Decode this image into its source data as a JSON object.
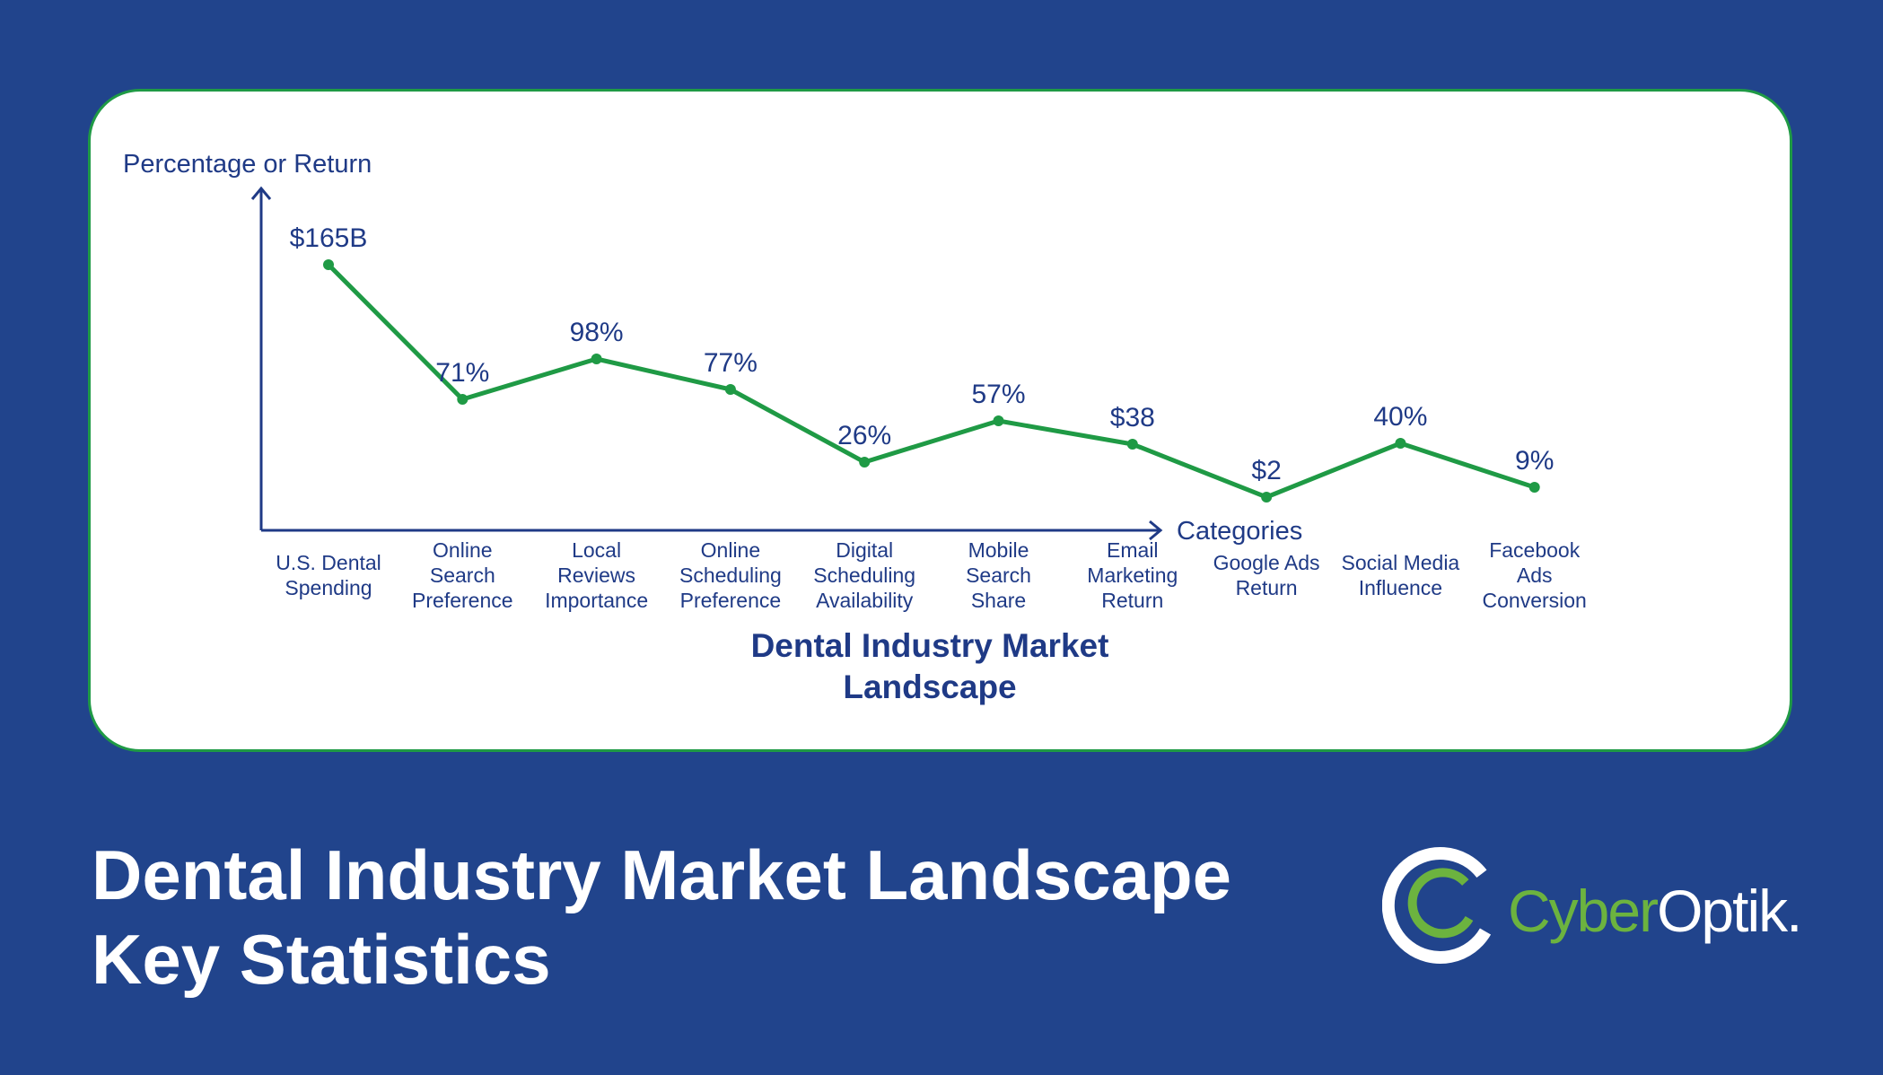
{
  "chart_data": {
    "type": "line",
    "title": "Dental Industry Market Landscape",
    "xlabel": "Categories",
    "ylabel": "Percentage or Return",
    "categories": [
      "U.S. Dental Spending",
      "Online Search Preference",
      "Local Reviews Importance",
      "Online Scheduling Preference",
      "Digital Scheduling Availability",
      "Mobile Search Share",
      "Email Marketing Return",
      "Google Ads Return",
      "Social Media Influence",
      "Facebook Ads Conversion"
    ],
    "category_lines": [
      [
        "U.S. Dental",
        "Spending"
      ],
      [
        "Online",
        "Search",
        "Preference"
      ],
      [
        "Local",
        "Reviews",
        "Importance"
      ],
      [
        "Online",
        "Scheduling",
        "Preference"
      ],
      [
        "Digital",
        "Scheduling",
        "Availability"
      ],
      [
        "Mobile",
        "Search",
        "Share"
      ],
      [
        "Email",
        "Marketing",
        "Return"
      ],
      [
        "Google Ads",
        "Return"
      ],
      [
        "Social Media",
        "Influence"
      ],
      [
        "Facebook",
        "Ads",
        "Conversion"
      ]
    ],
    "title_lines": [
      "Dental Industry Market",
      "Landscape"
    ],
    "data_labels": [
      "$165B",
      "71%",
      "98%",
      "77%",
      "26%",
      "57%",
      "$38",
      "$2",
      "40%",
      "9%"
    ],
    "values": [
      165,
      71,
      98,
      77,
      26,
      57,
      38,
      2,
      40,
      9
    ],
    "line_color": "#1f9a45",
    "text_color": "#1f3a86",
    "grid": false,
    "legend": "none"
  },
  "page": {
    "headline_line1": "Dental Industry Market Landscape",
    "headline_line2": "Key Statistics"
  },
  "logo": {
    "brand_part1": "Cyber",
    "brand_part2": "Optik.",
    "brand_color": "#6cb33f",
    "icon": "cyberoptik-ring-logo-icon"
  }
}
